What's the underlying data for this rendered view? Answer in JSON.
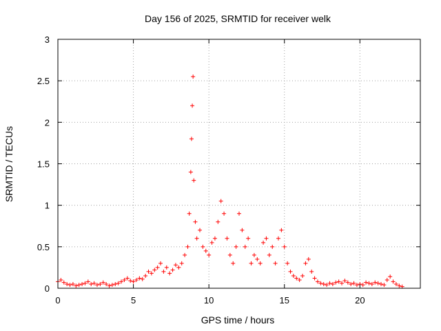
{
  "chart_data": {
    "type": "scatter",
    "title": "Day 156 of 2025, SRMTID for receiver welk",
    "xlabel": "GPS time / hours",
    "ylabel": "SRMTID / TECUs",
    "xlim": [
      0,
      24
    ],
    "ylim": [
      0,
      3
    ],
    "xticks": [
      0,
      5,
      10,
      15,
      20
    ],
    "yticks": [
      0,
      0.5,
      1,
      1.5,
      2,
      2.5,
      3
    ],
    "xtick_labels": [
      "0",
      "5",
      "10",
      "15",
      "20"
    ],
    "ytick_labels": [
      "0",
      "0.5",
      "1",
      "1.5",
      "2",
      "2.5",
      "3"
    ],
    "grid": true,
    "marker": "plus",
    "color": "#ff0000",
    "series": [
      {
        "name": "SRMTID",
        "points": [
          [
            0.0,
            0.08
          ],
          [
            0.2,
            0.1
          ],
          [
            0.4,
            0.07
          ],
          [
            0.6,
            0.05
          ],
          [
            0.8,
            0.04
          ],
          [
            1.0,
            0.05
          ],
          [
            1.2,
            0.03
          ],
          [
            1.4,
            0.04
          ],
          [
            1.6,
            0.05
          ],
          [
            1.8,
            0.06
          ],
          [
            2.0,
            0.08
          ],
          [
            2.2,
            0.05
          ],
          [
            2.4,
            0.06
          ],
          [
            2.6,
            0.04
          ],
          [
            2.8,
            0.05
          ],
          [
            3.0,
            0.07
          ],
          [
            3.2,
            0.05
          ],
          [
            3.4,
            0.03
          ],
          [
            3.6,
            0.04
          ],
          [
            3.8,
            0.05
          ],
          [
            4.0,
            0.06
          ],
          [
            4.2,
            0.08
          ],
          [
            4.4,
            0.1
          ],
          [
            4.6,
            0.12
          ],
          [
            4.8,
            0.09
          ],
          [
            5.0,
            0.08
          ],
          [
            5.2,
            0.1
          ],
          [
            5.4,
            0.12
          ],
          [
            5.6,
            0.11
          ],
          [
            5.8,
            0.15
          ],
          [
            6.0,
            0.2
          ],
          [
            6.2,
            0.18
          ],
          [
            6.4,
            0.22
          ],
          [
            6.6,
            0.25
          ],
          [
            6.8,
            0.3
          ],
          [
            7.0,
            0.2
          ],
          [
            7.2,
            0.25
          ],
          [
            7.4,
            0.18
          ],
          [
            7.6,
            0.22
          ],
          [
            7.8,
            0.28
          ],
          [
            8.0,
            0.25
          ],
          [
            8.2,
            0.3
          ],
          [
            8.4,
            0.4
          ],
          [
            8.6,
            0.5
          ],
          [
            8.7,
            0.9
          ],
          [
            8.8,
            1.4
          ],
          [
            8.85,
            1.8
          ],
          [
            8.9,
            2.2
          ],
          [
            8.95,
            2.55
          ],
          [
            9.0,
            1.3
          ],
          [
            9.1,
            0.8
          ],
          [
            9.2,
            0.6
          ],
          [
            9.4,
            0.7
          ],
          [
            9.6,
            0.5
          ],
          [
            9.8,
            0.45
          ],
          [
            10.0,
            0.4
          ],
          [
            10.2,
            0.55
          ],
          [
            10.4,
            0.6
          ],
          [
            10.6,
            0.8
          ],
          [
            10.8,
            1.05
          ],
          [
            11.0,
            0.9
          ],
          [
            11.2,
            0.6
          ],
          [
            11.4,
            0.4
          ],
          [
            11.6,
            0.3
          ],
          [
            11.8,
            0.5
          ],
          [
            12.0,
            0.9
          ],
          [
            12.2,
            0.7
          ],
          [
            12.4,
            0.5
          ],
          [
            12.6,
            0.6
          ],
          [
            12.8,
            0.3
          ],
          [
            13.0,
            0.4
          ],
          [
            13.2,
            0.35
          ],
          [
            13.4,
            0.3
          ],
          [
            13.6,
            0.55
          ],
          [
            13.8,
            0.6
          ],
          [
            14.0,
            0.4
          ],
          [
            14.2,
            0.5
          ],
          [
            14.4,
            0.3
          ],
          [
            14.6,
            0.6
          ],
          [
            14.8,
            0.7
          ],
          [
            15.0,
            0.5
          ],
          [
            15.2,
            0.3
          ],
          [
            15.4,
            0.2
          ],
          [
            15.6,
            0.15
          ],
          [
            15.8,
            0.12
          ],
          [
            16.0,
            0.1
          ],
          [
            16.2,
            0.15
          ],
          [
            16.4,
            0.3
          ],
          [
            16.6,
            0.35
          ],
          [
            16.8,
            0.2
          ],
          [
            17.0,
            0.12
          ],
          [
            17.2,
            0.08
          ],
          [
            17.4,
            0.06
          ],
          [
            17.6,
            0.05
          ],
          [
            17.8,
            0.04
          ],
          [
            18.0,
            0.06
          ],
          [
            18.2,
            0.05
          ],
          [
            18.4,
            0.07
          ],
          [
            18.6,
            0.08
          ],
          [
            18.8,
            0.06
          ],
          [
            19.0,
            0.09
          ],
          [
            19.2,
            0.07
          ],
          [
            19.4,
            0.05
          ],
          [
            19.6,
            0.06
          ],
          [
            19.8,
            0.04
          ],
          [
            20.0,
            0.05
          ],
          [
            20.2,
            0.04
          ],
          [
            20.4,
            0.07
          ],
          [
            20.6,
            0.06
          ],
          [
            20.8,
            0.05
          ],
          [
            21.0,
            0.07
          ],
          [
            21.2,
            0.06
          ],
          [
            21.4,
            0.05
          ],
          [
            21.6,
            0.04
          ],
          [
            21.8,
            0.1
          ],
          [
            22.0,
            0.14
          ],
          [
            22.2,
            0.08
          ],
          [
            22.4,
            0.05
          ],
          [
            22.6,
            0.03
          ],
          [
            22.8,
            0.02
          ]
        ]
      }
    ]
  }
}
